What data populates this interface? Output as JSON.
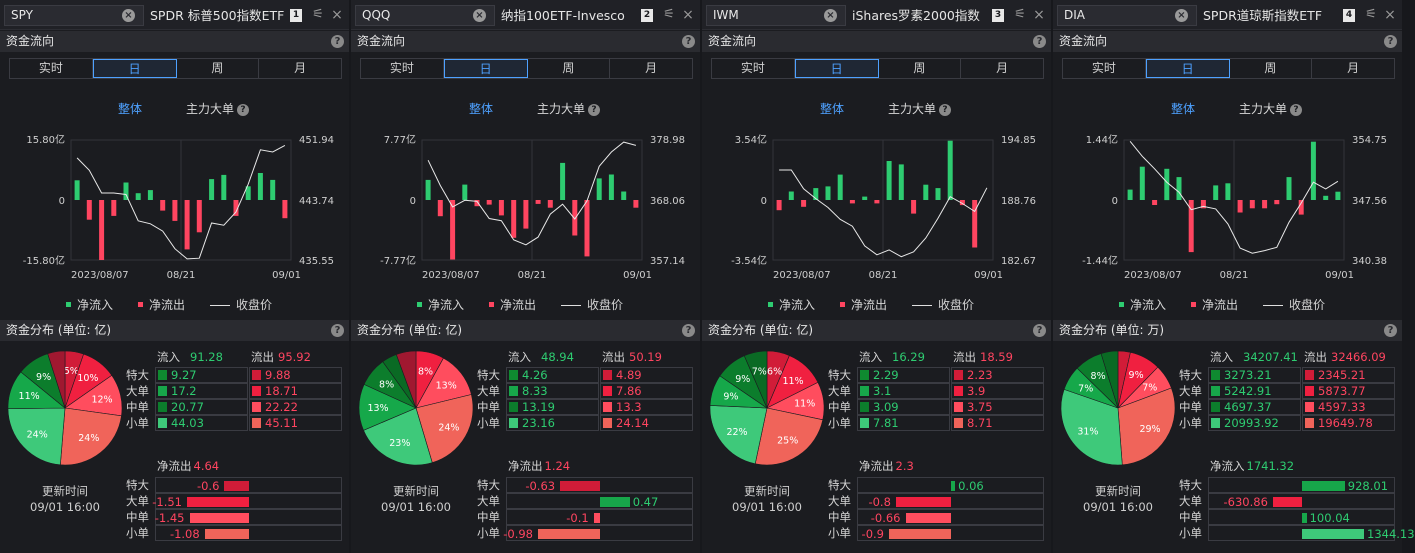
{
  "common": {
    "flow_header": "资金流向",
    "dist_header_prefix": "资金分布 (单位: ",
    "help": "?",
    "tabs": [
      "实时",
      "日",
      "周",
      "月"
    ],
    "active_tab": 1,
    "mode_all": "整体",
    "mode_main": "主力大单",
    "legend": [
      "净流入",
      "净流出",
      "收盘价"
    ],
    "inflow_label": "流入",
    "outflow_label": "流出",
    "size_labels": [
      "特大",
      "大单",
      "中单",
      "小单"
    ],
    "update_label": "更新时间",
    "update_time": "09/01 16:00",
    "colors": {
      "green": "#2ecc71",
      "red": "#ff4560",
      "blue": "#4ea1ff",
      "background": "#1b1c20"
    }
  },
  "panels": [
    {
      "symbol": "SPY",
      "name": "SPDR 标普500指数ETF",
      "num": "1",
      "unit": "亿",
      "chart_data": {
        "type": "bar+line",
        "dates": [
          "2023/08/07",
          "08/21",
          "09/01"
        ],
        "flow_axis": [
          "15.80亿",
          "0",
          "-15.80亿"
        ],
        "flow_max": 15.8,
        "price_axis": [
          "451.94",
          "443.74",
          "435.55"
        ],
        "price_range": [
          435.55,
          451.94
        ],
        "flows": [
          5.2,
          -5.2,
          -15.8,
          -4.2,
          4.6,
          1.8,
          2.6,
          -2.8,
          -5.5,
          -13.0,
          -8.5,
          5.5,
          6.6,
          -4.2,
          3.6,
          7.1,
          5.3,
          -4.8
        ],
        "price": [
          449.5,
          447.8,
          444.7,
          444.7,
          444.5,
          440.9,
          440.5,
          439.5,
          437.1,
          435.7,
          435.8,
          440.6,
          440.3,
          442.1,
          445.9,
          450.6,
          450.3,
          451.2
        ]
      },
      "dist": {
        "inflow": "91.28",
        "outflow": "95.92",
        "in_values": [
          "9.27",
          "17.2",
          "20.77",
          "44.03"
        ],
        "out_values": [
          "9.88",
          "18.71",
          "22.22",
          "45.11"
        ],
        "pie": [
          {
            "label": "5%",
            "value": 5.3,
            "color": "#d11c38"
          },
          {
            "label": "10%",
            "value": 10.0,
            "color": "#f02040"
          },
          {
            "label": "12%",
            "value": 11.9,
            "color": "#ff4d5e"
          },
          {
            "label": "24%",
            "value": 24.1,
            "color": "#f0645a"
          },
          {
            "label": "24%",
            "value": 23.5,
            "color": "#3ec97a"
          },
          {
            "label": "11%",
            "value": 11.1,
            "color": "#16a84a"
          },
          {
            "label": "9%",
            "value": 9.2,
            "color": "#0c7d2c"
          },
          {
            "label": "",
            "value": 4.9,
            "color": "#a01830"
          }
        ],
        "net_label": "净流出",
        "net_value": "4.64",
        "net_rows": [
          {
            "value": "-0.6",
            "num": -0.6
          },
          {
            "value": "-1.51",
            "num": -1.51
          },
          {
            "value": "-1.45",
            "num": -1.45
          },
          {
            "value": "-1.08",
            "num": -1.08
          }
        ],
        "net_max": 1.51
      }
    },
    {
      "symbol": "QQQ",
      "name": "纳指100ETF-Invesco",
      "num": "2",
      "unit": "亿",
      "chart_data": {
        "type": "bar+line",
        "dates": [
          "2023/08/07",
          "08/21",
          "09/01"
        ],
        "flow_axis": [
          "7.77亿",
          "0",
          "-7.77亿"
        ],
        "flow_max": 7.77,
        "price_axis": [
          "378.98",
          "368.06",
          "357.14"
        ],
        "price_range": [
          357.14,
          378.98
        ],
        "flows": [
          2.6,
          -2.1,
          -7.7,
          2.0,
          -0.8,
          -0.6,
          -2.0,
          -4.9,
          -3.7,
          -0.5,
          -1.0,
          4.8,
          -4.6,
          -7.3,
          2.8,
          3.3,
          1.1,
          -1.0
        ],
        "price": [
          375.3,
          370.7,
          366.8,
          368.0,
          367.8,
          364.7,
          364.3,
          360.8,
          359.9,
          361.3,
          365.5,
          367.3,
          364.6,
          367.9,
          374.2,
          376.8,
          378.6,
          378.0
        ]
      },
      "dist": {
        "inflow": "48.94",
        "outflow": "50.19",
        "in_values": [
          "4.26",
          "8.33",
          "13.19",
          "23.16"
        ],
        "out_values": [
          "4.89",
          "7.86",
          "13.3",
          "24.14"
        ],
        "pie": [
          {
            "label": "8%",
            "value": 8.0,
            "color": "#f02040"
          },
          {
            "label": "13%",
            "value": 13.2,
            "color": "#ff4d5e"
          },
          {
            "label": "24%",
            "value": 24.2,
            "color": "#f0645a"
          },
          {
            "label": "23%",
            "value": 23.2,
            "color": "#3ec97a"
          },
          {
            "label": "13%",
            "value": 13.2,
            "color": "#16a84a"
          },
          {
            "label": "8%",
            "value": 8.3,
            "color": "#0c7d2c"
          },
          {
            "label": "",
            "value": 4.3,
            "color": "#0a6a24"
          },
          {
            "label": "",
            "value": 5.6,
            "color": "#a01830"
          }
        ],
        "net_label": "净流出",
        "net_value": "1.24",
        "net_rows": [
          {
            "value": "-0.63",
            "num": -0.63
          },
          {
            "value": "0.47",
            "num": 0.47
          },
          {
            "value": "-0.1",
            "num": -0.1
          },
          {
            "value": "-0.98",
            "num": -0.98
          }
        ],
        "net_max": 0.98
      }
    },
    {
      "symbol": "IWM",
      "name": "iShares罗素2000指数",
      "num": "3",
      "unit": "亿",
      "chart_data": {
        "type": "bar+line",
        "dates": [
          "2023/08/07",
          "08/21",
          "09/01"
        ],
        "flow_axis": [
          "3.54亿",
          "0",
          "-3.54亿"
        ],
        "flow_max": 3.54,
        "price_axis": [
          "194.85",
          "188.76",
          "182.67"
        ],
        "price_range": [
          182.67,
          194.85
        ],
        "flows": [
          -0.6,
          0.5,
          -0.4,
          0.7,
          0.8,
          1.5,
          -0.2,
          0.2,
          -0.2,
          2.3,
          2.1,
          -0.8,
          0.9,
          0.7,
          3.5,
          -0.3,
          -2.8,
          0
        ],
        "price": [
          191.8,
          191.8,
          189.9,
          188.9,
          188.0,
          186.8,
          186.1,
          184.1,
          183.2,
          183.7,
          183.0,
          183.5,
          184.9,
          186.9,
          189.1,
          188.4,
          187.6,
          190.0
        ]
      },
      "dist": {
        "inflow": "16.29",
        "outflow": "18.59",
        "in_values": [
          "2.29",
          "3.1",
          "3.09",
          "7.81"
        ],
        "out_values": [
          "2.23",
          "3.9",
          "3.75",
          "8.71"
        ],
        "pie": [
          {
            "label": "6%",
            "value": 6.4,
            "color": "#d11c38"
          },
          {
            "label": "11%",
            "value": 11.1,
            "color": "#f02040"
          },
          {
            "label": "11%",
            "value": 10.7,
            "color": "#ff4d5e"
          },
          {
            "label": "25%",
            "value": 24.9,
            "color": "#f0645a"
          },
          {
            "label": "22%",
            "value": 22.3,
            "color": "#3ec97a"
          },
          {
            "label": "9%",
            "value": 8.8,
            "color": "#16a84a"
          },
          {
            "label": "9%",
            "value": 8.9,
            "color": "#0c7d2c"
          },
          {
            "label": "7%",
            "value": 6.5,
            "color": "#0a6a24"
          }
        ],
        "net_label": "净流出",
        "net_value": "2.3",
        "net_rows": [
          {
            "value": "0.06",
            "num": 0.06
          },
          {
            "value": "-0.8",
            "num": -0.8
          },
          {
            "value": "-0.66",
            "num": -0.66
          },
          {
            "value": "-0.9",
            "num": -0.9
          }
        ],
        "net_max": 0.9
      }
    },
    {
      "symbol": "DIA",
      "name": "SPDR道琼斯指数ETF",
      "num": "4",
      "unit": "万",
      "chart_data": {
        "type": "bar+line",
        "dates": [
          "2023/08/07",
          "08/21",
          "09/01"
        ],
        "flow_axis": [
          "1.44亿",
          "0",
          "-1.44亿"
        ],
        "flow_max": 1.44,
        "price_axis": [
          "354.75",
          "347.56",
          "340.38"
        ],
        "price_range": [
          340.38,
          354.75
        ],
        "flows": [
          0.25,
          0.8,
          -0.12,
          0.75,
          0.55,
          -1.25,
          -0.2,
          0.35,
          0.4,
          -0.3,
          -0.2,
          -0.2,
          -0.1,
          0.55,
          -0.35,
          1.4,
          0.1,
          0.2
        ],
        "price": [
          354.6,
          352.8,
          351.3,
          349.7,
          348.5,
          346.4,
          346.8,
          346.5,
          344.7,
          341.8,
          341.2,
          341.5,
          341.9,
          344.9,
          347.2,
          349.7,
          348.9,
          349.8
        ]
      },
      "dist": {
        "inflow": "34207.41",
        "outflow": "32466.09",
        "in_values": [
          "3273.21",
          "5242.91",
          "4697.37",
          "20993.92"
        ],
        "out_values": [
          "2345.21",
          "5873.77",
          "4597.33",
          "19649.78"
        ],
        "pie": [
          {
            "label": "",
            "value": 3.5,
            "color": "#d11c38"
          },
          {
            "label": "9%",
            "value": 8.8,
            "color": "#f02040"
          },
          {
            "label": "7%",
            "value": 7.0,
            "color": "#ff4d5e"
          },
          {
            "label": "29%",
            "value": 29.5,
            "color": "#f0645a"
          },
          {
            "label": "31%",
            "value": 31.5,
            "color": "#3ec97a"
          },
          {
            "label": "7%",
            "value": 7.0,
            "color": "#16a84a"
          },
          {
            "label": "8%",
            "value": 7.9,
            "color": "#0c7d2c"
          },
          {
            "label": "",
            "value": 4.8,
            "color": "#0a6a24"
          }
        ],
        "net_label": "净流入",
        "net_value": "1741.32",
        "net_rows": [
          {
            "value": "928.01",
            "num": 928.01
          },
          {
            "value": "-630.86",
            "num": -630.86
          },
          {
            "value": "100.04",
            "num": 100.04
          },
          {
            "value": "1344.13",
            "num": 1344.13
          }
        ],
        "net_max": 1344.13
      }
    }
  ]
}
